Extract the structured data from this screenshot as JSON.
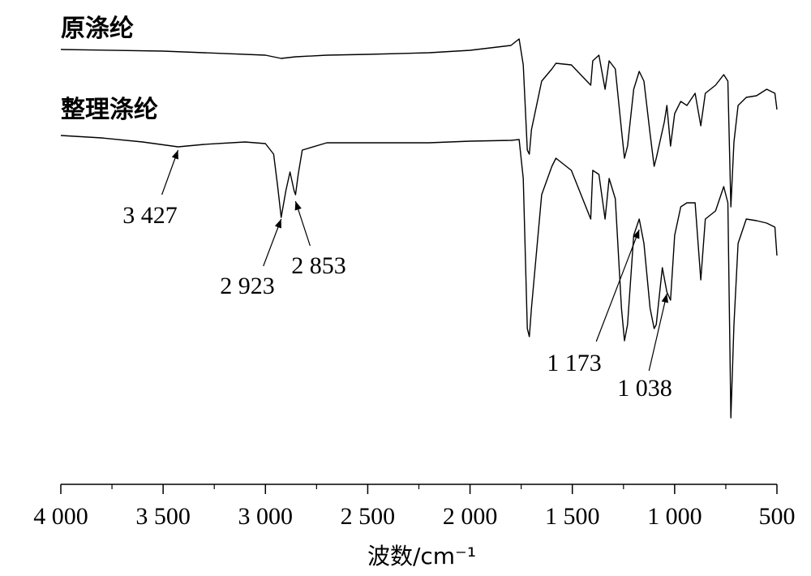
{
  "chart_data": {
    "type": "line",
    "xlabel": "波数/cm⁻¹",
    "xlim": [
      4000,
      500
    ],
    "xticks": [
      {
        "value": 4000,
        "label": "4 000"
      },
      {
        "value": 3500,
        "label": "3 500"
      },
      {
        "value": 3000,
        "label": "3 000"
      },
      {
        "value": 2500,
        "label": "2 500"
      },
      {
        "value": 2000,
        "label": "2 000"
      },
      {
        "value": 1500,
        "label": "1 500"
      },
      {
        "value": 1000,
        "label": "1 000"
      },
      500
    ],
    "xminor_ticks": [
      3750,
      3250,
      2750,
      2250,
      1750,
      1250,
      750
    ],
    "ylim": [
      0,
      100
    ],
    "series": [
      {
        "name": "原涤纶",
        "color": "#000000",
        "x": [
          4000,
          3500,
          3000,
          2923,
          2853,
          2700,
          2500,
          2200,
          2000,
          1800,
          1760,
          1740,
          1720,
          1710,
          1700,
          1650,
          1600,
          1580,
          1505,
          1410,
          1400,
          1370,
          1340,
          1320,
          1290,
          1260,
          1245,
          1230,
          1200,
          1173,
          1150,
          1120,
          1100,
          1090,
          1050,
          1038,
          1020,
          1000,
          970,
          940,
          900,
          872,
          850,
          800,
          760,
          740,
          725,
          710,
          690,
          650,
          600,
          550,
          510,
          500
        ],
        "values": [
          95.8,
          95.4,
          94.4,
          93.6,
          94,
          94.4,
          94.6,
          95,
          95.6,
          96.8,
          98.4,
          92,
          71,
          70,
          76,
          88,
          91,
          92.4,
          92,
          87,
          93,
          94.4,
          86,
          93,
          91,
          76,
          69,
          72,
          86,
          90.4,
          88,
          75,
          67,
          69,
          78,
          82,
          72,
          80,
          83,
          82,
          85,
          77,
          85,
          87,
          89.6,
          88,
          57,
          73,
          82,
          84,
          84.4,
          86,
          85,
          81
        ]
      },
      {
        "name": "整理涤纶",
        "color": "#000000",
        "x": [
          4000,
          3800,
          3600,
          3427,
          3300,
          3100,
          3000,
          2960,
          2940,
          2923,
          2900,
          2880,
          2860,
          2853,
          2840,
          2820,
          2700,
          2500,
          2200,
          2000,
          1800,
          1760,
          1740,
          1720,
          1710,
          1700,
          1650,
          1600,
          1580,
          1505,
          1410,
          1400,
          1370,
          1340,
          1320,
          1290,
          1260,
          1245,
          1230,
          1200,
          1173,
          1150,
          1120,
          1100,
          1090,
          1060,
          1038,
          1020,
          1000,
          970,
          940,
          900,
          872,
          850,
          800,
          760,
          740,
          725,
          710,
          690,
          650,
          600,
          550,
          510,
          500
        ],
        "values": [
          74.6,
          74,
          73,
          71.8,
          72.4,
          73,
          72.6,
          70,
          62,
          54.4,
          61,
          65.6,
          61,
          60,
          65,
          71,
          72.8,
          72.8,
          72.8,
          73.2,
          73.4,
          73.6,
          64,
          27,
          25,
          32,
          60,
          67,
          69,
          66,
          54,
          66,
          65,
          54,
          64,
          59,
          32,
          24,
          28,
          50,
          54,
          48,
          32,
          27,
          28,
          42,
          36,
          34,
          50,
          57,
          58,
          58,
          39,
          54,
          56,
          62,
          58,
          5,
          28,
          48,
          54,
          53.6,
          53,
          52,
          45
        ]
      }
    ],
    "annotations": [
      {
        "text": "3 427",
        "x": 3427
      },
      {
        "text": "2 923",
        "x": 2923
      },
      {
        "text": "2 853",
        "x": 2853
      },
      {
        "text": "1 173",
        "x": 1173
      },
      {
        "text": "1 038",
        "x": 1038
      }
    ]
  }
}
